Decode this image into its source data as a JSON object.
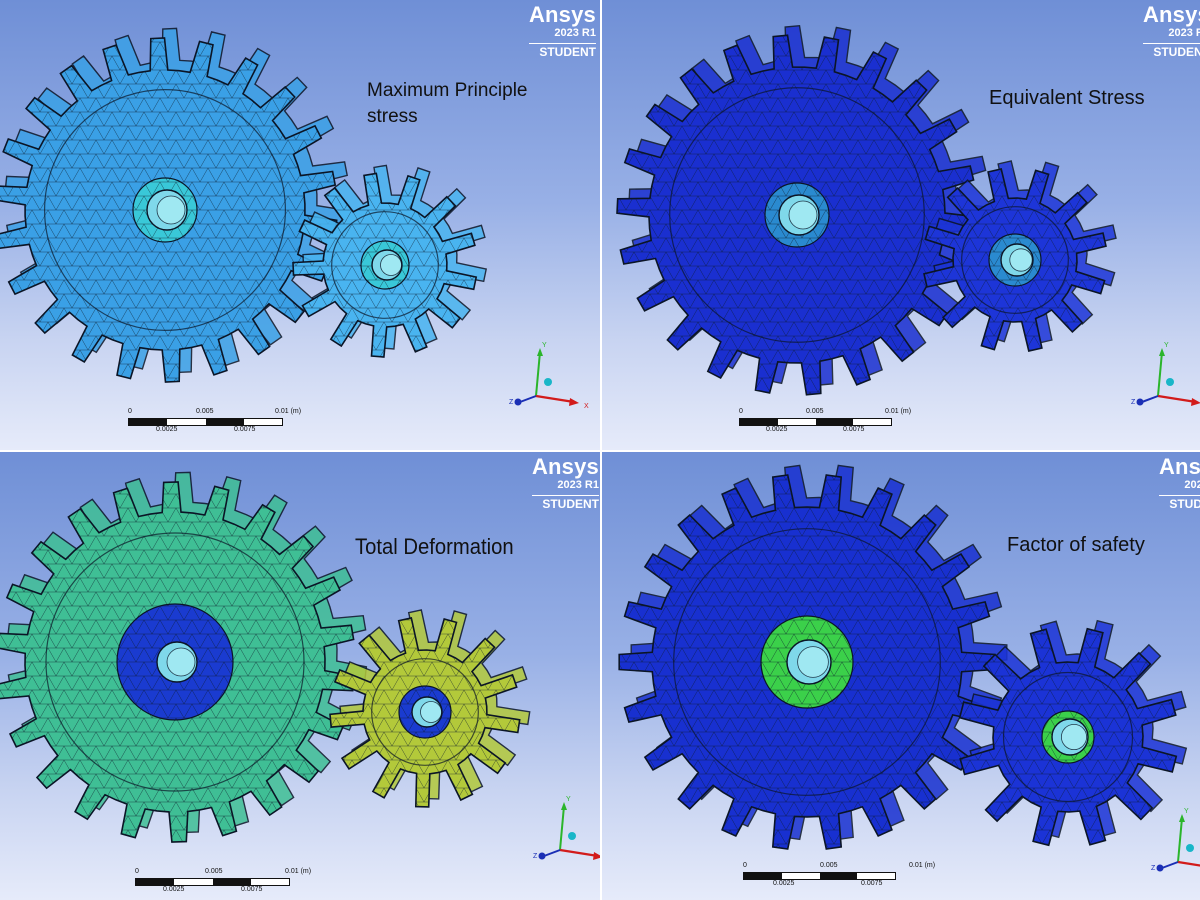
{
  "brand": {
    "name": "Ansys",
    "version": "2023 R1",
    "edition": "STUDENT"
  },
  "scale": {
    "zero": "0",
    "mid": "0.005",
    "end": "0.01 (m)",
    "q1": "0.0025",
    "q3": "0.0075"
  },
  "triad": {
    "x": "X",
    "y": "Y",
    "z": "Z"
  },
  "panels": [
    {
      "id": "max-principal",
      "label": "Maximum Principle stress",
      "label_lines": [
        "Maximum Principle",
        "stress"
      ],
      "gear_color": "#3aa0e6",
      "pinion_color": "#49b4f0",
      "hub_color": "#39c8d8"
    },
    {
      "id": "equivalent",
      "label": "Equivalent Stress",
      "label_lines": [
        "Equivalent Stress"
      ],
      "gear_color": "#1a2fd0",
      "pinion_color": "#1d35d8",
      "hub_color": "#2a8ad0"
    },
    {
      "id": "deformation",
      "label": "Total Deformation",
      "label_lines": [
        "Total Deformation"
      ],
      "gear_color": "#3fbf95",
      "pinion_color": "#b3c93a",
      "hub_color": "#1a3bd0"
    },
    {
      "id": "factor-of-safety",
      "label": "Factor of safety",
      "label_lines": [
        "Factor of safety"
      ],
      "gear_color": "#1830d0",
      "pinion_color": "#1b33d6",
      "hub_color": "#3bd04a"
    }
  ]
}
